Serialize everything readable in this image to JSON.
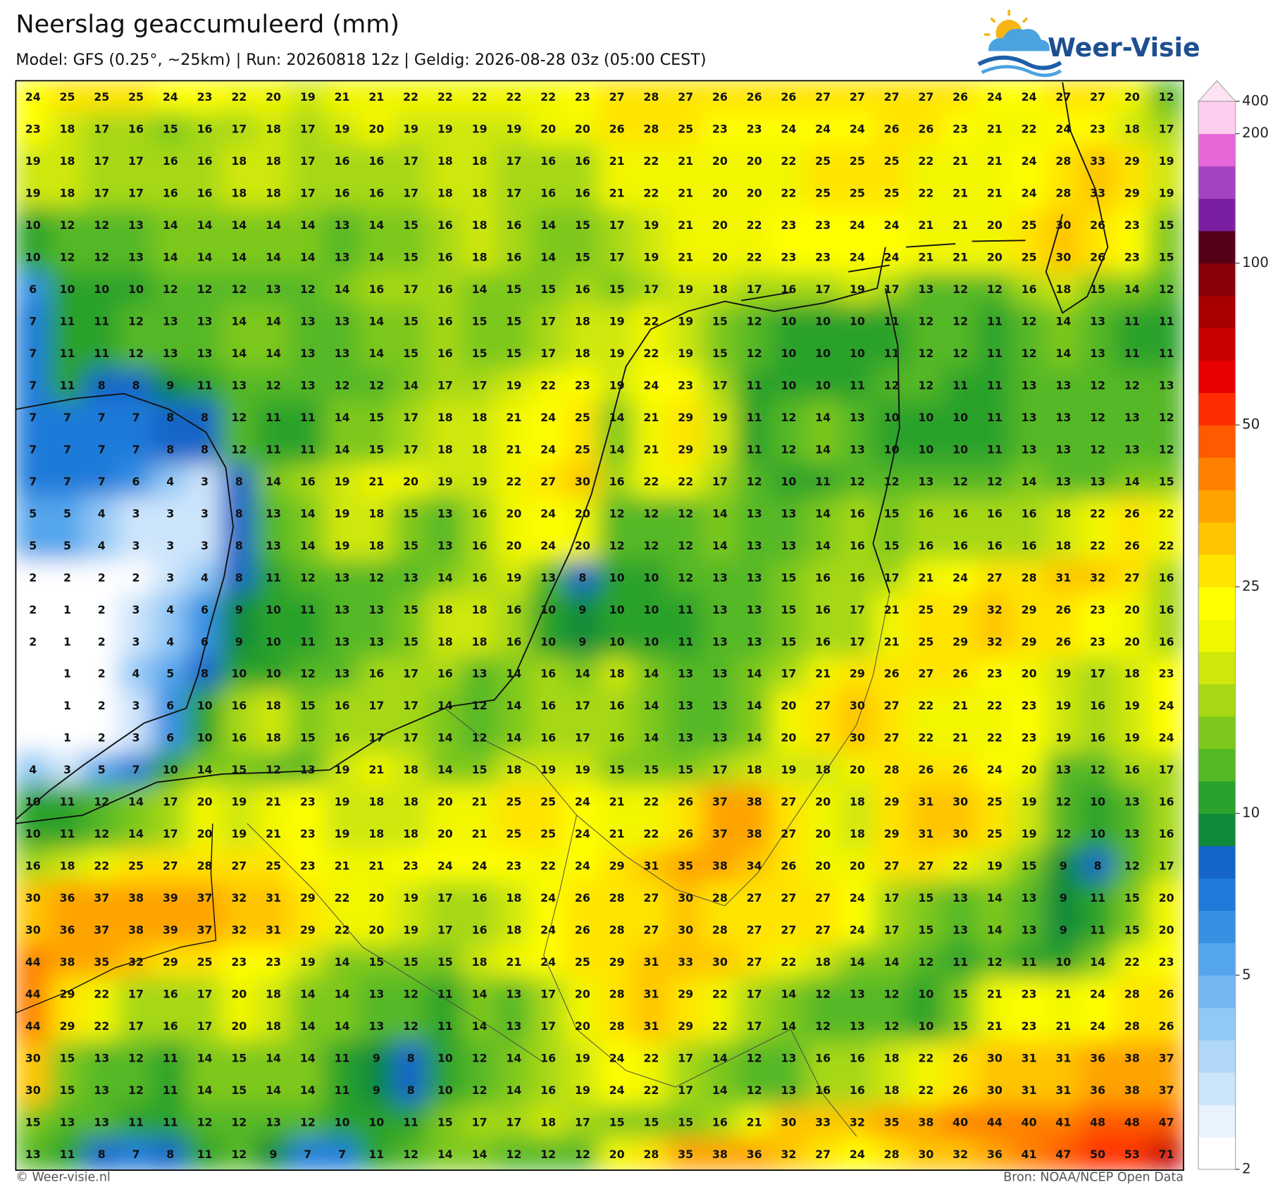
{
  "header": {
    "title": "Neerslag geaccumuleerd (mm)",
    "subtitle": "Model: GFS (0.25°, ~25km)  |  Run: 20260818 12z  |  Geldig: 2026-08-28 03z (05:00 CEST)"
  },
  "logo": "Weer-Visie",
  "map": {
    "rows": [
      [
        24,
        25,
        25,
        25,
        24,
        23,
        22,
        20,
        19,
        21,
        21,
        22,
        22,
        22,
        22,
        22,
        23,
        27,
        28,
        27,
        26,
        26,
        26,
        27,
        27,
        27,
        27,
        26,
        24,
        24,
        27,
        27,
        20,
        12
      ],
      [
        23,
        18,
        17,
        16,
        15,
        16,
        17,
        18,
        17,
        19,
        20,
        19,
        19,
        19,
        19,
        20,
        20,
        26,
        28,
        25,
        23,
        23,
        24,
        24,
        24,
        26,
        26,
        23,
        21,
        22,
        24,
        23,
        18,
        17
      ],
      [
        19,
        18,
        17,
        17,
        16,
        16,
        18,
        18,
        17,
        16,
        16,
        17,
        18,
        18,
        17,
        16,
        16,
        21,
        22,
        21,
        20,
        20,
        22,
        25,
        25,
        25,
        22,
        21,
        21,
        24,
        28,
        33,
        29,
        19
      ],
      [
        19,
        18,
        17,
        17,
        16,
        16,
        18,
        18,
        17,
        16,
        16,
        17,
        18,
        18,
        17,
        16,
        16,
        21,
        22,
        21,
        20,
        20,
        22,
        25,
        25,
        25,
        22,
        21,
        21,
        24,
        28,
        33,
        29,
        19
      ],
      [
        10,
        12,
        12,
        13,
        14,
        14,
        14,
        14,
        14,
        13,
        14,
        15,
        16,
        18,
        16,
        14,
        15,
        17,
        19,
        21,
        20,
        22,
        23,
        23,
        24,
        24,
        21,
        21,
        20,
        25,
        30,
        26,
        23,
        15
      ],
      [
        10,
        12,
        12,
        13,
        14,
        14,
        14,
        14,
        14,
        13,
        14,
        15,
        16,
        18,
        16,
        14,
        15,
        17,
        19,
        21,
        20,
        22,
        23,
        23,
        24,
        24,
        21,
        21,
        20,
        25,
        30,
        26,
        23,
        15
      ],
      [
        6,
        10,
        10,
        10,
        12,
        12,
        12,
        13,
        12,
        14,
        16,
        17,
        16,
        14,
        15,
        15,
        16,
        15,
        17,
        19,
        18,
        17,
        16,
        17,
        19,
        17,
        13,
        12,
        12,
        16,
        18,
        15,
        14,
        12
      ],
      [
        7,
        11,
        11,
        12,
        13,
        13,
        14,
        14,
        13,
        13,
        14,
        15,
        16,
        15,
        15,
        17,
        18,
        19,
        22,
        19,
        15,
        12,
        10,
        10,
        10,
        11,
        12,
        12,
        11,
        12,
        14,
        13,
        11,
        11
      ],
      [
        7,
        11,
        11,
        12,
        13,
        13,
        14,
        14,
        13,
        13,
        14,
        15,
        16,
        15,
        15,
        17,
        18,
        19,
        22,
        19,
        15,
        12,
        10,
        10,
        10,
        11,
        12,
        12,
        11,
        12,
        14,
        13,
        11,
        11
      ],
      [
        7,
        11,
        8,
        8,
        9,
        11,
        13,
        12,
        13,
        12,
        12,
        14,
        17,
        17,
        19,
        22,
        23,
        19,
        24,
        23,
        17,
        11,
        10,
        10,
        11,
        12,
        12,
        11,
        11,
        13,
        13,
        12,
        12,
        13
      ],
      [
        7,
        7,
        7,
        7,
        8,
        8,
        12,
        11,
        11,
        14,
        15,
        17,
        18,
        18,
        21,
        24,
        25,
        14,
        21,
        29,
        19,
        11,
        12,
        14,
        13,
        10,
        10,
        10,
        11,
        13,
        13,
        12,
        13,
        12
      ],
      [
        7,
        7,
        7,
        7,
        8,
        8,
        12,
        11,
        11,
        14,
        15,
        17,
        18,
        18,
        21,
        24,
        25,
        14,
        21,
        29,
        19,
        11,
        12,
        14,
        13,
        10,
        10,
        10,
        11,
        13,
        13,
        12,
        13,
        12
      ],
      [
        7,
        7,
        7,
        6,
        4,
        3,
        8,
        14,
        16,
        19,
        21,
        20,
        19,
        19,
        22,
        27,
        30,
        16,
        22,
        22,
        17,
        12,
        10,
        11,
        12,
        12,
        13,
        12,
        12,
        14,
        13,
        13,
        14,
        15
      ],
      [
        5,
        5,
        4,
        3,
        3,
        3,
        8,
        13,
        14,
        19,
        18,
        15,
        13,
        16,
        20,
        24,
        20,
        12,
        12,
        12,
        14,
        13,
        13,
        14,
        16,
        15,
        16,
        16,
        16,
        16,
        18,
        22,
        26,
        22
      ],
      [
        5,
        5,
        4,
        3,
        3,
        3,
        8,
        13,
        14,
        19,
        18,
        15,
        13,
        16,
        20,
        24,
        20,
        12,
        12,
        12,
        14,
        13,
        13,
        14,
        16,
        15,
        16,
        16,
        16,
        16,
        18,
        22,
        26,
        22
      ],
      [
        2,
        2,
        2,
        2,
        3,
        4,
        8,
        11,
        12,
        13,
        12,
        13,
        14,
        16,
        19,
        13,
        8,
        10,
        10,
        12,
        13,
        13,
        15,
        16,
        16,
        17,
        21,
        24,
        27,
        28,
        31,
        32,
        27,
        16
      ],
      [
        2,
        1,
        2,
        3,
        4,
        6,
        9,
        10,
        11,
        13,
        13,
        15,
        18,
        18,
        16,
        10,
        9,
        10,
        10,
        11,
        13,
        13,
        15,
        16,
        17,
        21,
        25,
        29,
        32,
        29,
        26,
        23,
        20,
        16
      ],
      [
        2,
        1,
        2,
        3,
        4,
        6,
        9,
        10,
        11,
        13,
        13,
        15,
        18,
        18,
        16,
        10,
        9,
        10,
        10,
        11,
        13,
        13,
        15,
        16,
        17,
        21,
        25,
        29,
        32,
        29,
        26,
        23,
        20,
        16
      ],
      [
        null,
        1,
        2,
        4,
        5,
        8,
        10,
        10,
        12,
        13,
        16,
        17,
        16,
        13,
        14,
        16,
        14,
        18,
        14,
        13,
        13,
        14,
        17,
        21,
        29,
        26,
        27,
        26,
        23,
        20,
        19,
        17,
        18,
        23
      ],
      [
        null,
        1,
        2,
        3,
        6,
        10,
        16,
        18,
        15,
        16,
        17,
        17,
        14,
        12,
        14,
        16,
        17,
        16,
        14,
        13,
        13,
        14,
        20,
        27,
        30,
        27,
        22,
        21,
        22,
        23,
        19,
        16,
        19,
        24
      ],
      [
        null,
        1,
        2,
        3,
        6,
        10,
        16,
        18,
        15,
        16,
        17,
        17,
        14,
        12,
        14,
        16,
        17,
        16,
        14,
        13,
        13,
        14,
        20,
        27,
        30,
        27,
        22,
        21,
        22,
        23,
        19,
        16,
        19,
        24
      ],
      [
        4,
        3,
        5,
        7,
        10,
        14,
        15,
        12,
        13,
        19,
        21,
        18,
        14,
        15,
        18,
        19,
        19,
        15,
        15,
        15,
        17,
        18,
        19,
        18,
        20,
        28,
        26,
        26,
        24,
        20,
        13,
        12,
        16,
        17
      ],
      [
        10,
        11,
        12,
        14,
        17,
        20,
        19,
        21,
        23,
        19,
        18,
        18,
        20,
        21,
        25,
        25,
        24,
        21,
        22,
        26,
        37,
        38,
        27,
        20,
        18,
        29,
        31,
        30,
        25,
        19,
        12,
        10,
        13,
        16
      ],
      [
        10,
        11,
        12,
        14,
        17,
        20,
        19,
        21,
        23,
        19,
        18,
        18,
        20,
        21,
        25,
        25,
        24,
        21,
        22,
        26,
        37,
        38,
        27,
        20,
        18,
        29,
        31,
        30,
        25,
        19,
        12,
        10,
        13,
        16
      ],
      [
        16,
        18,
        22,
        25,
        27,
        28,
        27,
        25,
        23,
        21,
        21,
        23,
        24,
        24,
        23,
        22,
        24,
        29,
        31,
        35,
        38,
        34,
        26,
        20,
        20,
        27,
        27,
        22,
        19,
        15,
        9,
        8,
        12,
        17
      ],
      [
        30,
        36,
        37,
        38,
        39,
        37,
        32,
        31,
        29,
        22,
        20,
        19,
        17,
        16,
        18,
        24,
        26,
        28,
        27,
        30,
        28,
        27,
        27,
        27,
        24,
        17,
        15,
        13,
        14,
        13,
        9,
        11,
        15,
        20
      ],
      [
        30,
        36,
        37,
        38,
        39,
        37,
        32,
        31,
        29,
        22,
        20,
        19,
        17,
        16,
        18,
        24,
        26,
        28,
        27,
        30,
        28,
        27,
        27,
        27,
        24,
        17,
        15,
        13,
        14,
        13,
        9,
        11,
        15,
        20
      ],
      [
        44,
        38,
        35,
        32,
        29,
        25,
        23,
        23,
        19,
        14,
        15,
        15,
        15,
        18,
        21,
        24,
        25,
        29,
        31,
        33,
        30,
        27,
        22,
        18,
        14,
        14,
        12,
        11,
        12,
        11,
        10,
        14,
        22,
        23
      ],
      [
        44,
        29,
        22,
        17,
        16,
        17,
        20,
        18,
        14,
        14,
        13,
        12,
        11,
        14,
        13,
        17,
        20,
        28,
        31,
        29,
        22,
        17,
        14,
        12,
        13,
        12,
        10,
        15,
        21,
        23,
        21,
        24,
        28,
        26
      ],
      [
        44,
        29,
        22,
        17,
        16,
        17,
        20,
        18,
        14,
        14,
        13,
        12,
        11,
        14,
        13,
        17,
        20,
        28,
        31,
        29,
        22,
        17,
        14,
        12,
        13,
        12,
        10,
        15,
        21,
        23,
        21,
        24,
        28,
        26
      ],
      [
        30,
        15,
        13,
        12,
        11,
        14,
        15,
        14,
        14,
        11,
        9,
        8,
        10,
        12,
        14,
        16,
        19,
        24,
        22,
        17,
        14,
        12,
        13,
        16,
        16,
        18,
        22,
        26,
        30,
        31,
        31,
        36,
        38,
        37
      ],
      [
        30,
        15,
        13,
        12,
        11,
        14,
        15,
        14,
        14,
        11,
        9,
        8,
        10,
        12,
        14,
        16,
        19,
        24,
        22,
        17,
        14,
        12,
        13,
        16,
        16,
        18,
        22,
        26,
        30,
        31,
        31,
        36,
        38,
        37
      ],
      [
        15,
        13,
        13,
        11,
        11,
        12,
        12,
        13,
        12,
        10,
        10,
        11,
        15,
        17,
        17,
        18,
        17,
        15,
        15,
        15,
        16,
        21,
        30,
        33,
        32,
        35,
        38,
        40,
        44,
        40,
        41,
        48,
        48,
        47
      ],
      [
        13,
        11,
        8,
        7,
        8,
        11,
        12,
        9,
        7,
        7,
        11,
        12,
        14,
        14,
        12,
        12,
        12,
        20,
        28,
        35,
        38,
        36,
        32,
        27,
        24,
        28,
        30,
        32,
        36,
        41,
        47,
        50,
        53,
        71
      ]
    ],
    "colorbar": {
      "levels": [
        2,
        2.5,
        3,
        3.5,
        4,
        4.5,
        5,
        6,
        7,
        8,
        9,
        10,
        12,
        14,
        16,
        18,
        20,
        22.5,
        25,
        30,
        35,
        40,
        45,
        50,
        60,
        70,
        80,
        90,
        100,
        125,
        150,
        175,
        200,
        400
      ],
      "colors": [
        "#ffffff",
        "#e8f3fd",
        "#cde5fb",
        "#b0d7f8",
        "#92c8f5",
        "#73b8f1",
        "#55a5ec",
        "#3690e4",
        "#1f7ad9",
        "#1465c8",
        "#0f8a3a",
        "#2ba22c",
        "#55b825",
        "#7dc81c",
        "#a6d814",
        "#cfe70a",
        "#f2f700",
        "#ffff00",
        "#ffe400",
        "#ffc400",
        "#ffa300",
        "#ff8000",
        "#ff5a00",
        "#ff2d00",
        "#e80000",
        "#c80000",
        "#a80000",
        "#880008",
        "#560018",
        "#7b1fa2",
        "#a542c2",
        "#e766d8",
        "#ffcdef"
      ],
      "under_color": "#ffffff",
      "over_color": "#fde3f4",
      "ticks": [
        2,
        5,
        10,
        25,
        50,
        100,
        200,
        400
      ]
    }
  },
  "footer": {
    "left": "© Weer-visie.nl",
    "right": "Bron: NOAA/NCEP Open Data"
  }
}
